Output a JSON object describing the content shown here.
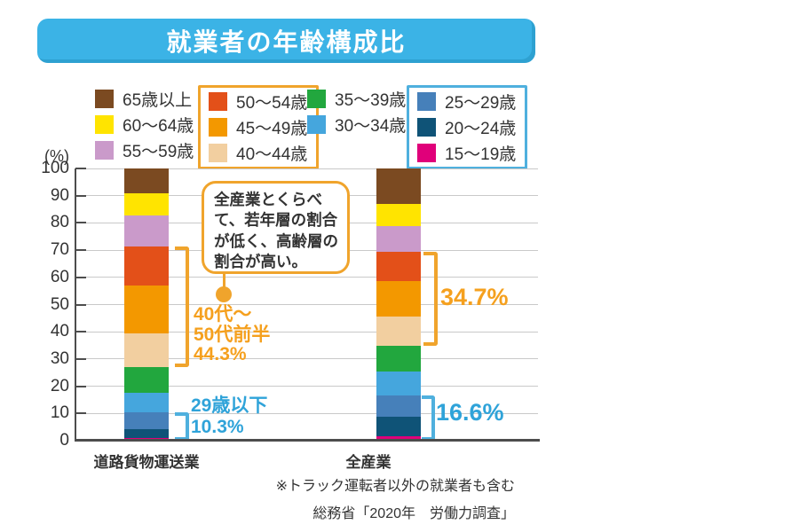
{
  "title": "就業者の年齢構成比",
  "colors": {
    "title_bg": "#3bb3e6",
    "accent_orange": "#f0a42c",
    "text_orange": "#f5a01e",
    "accent_blue": "#4fb0de",
    "text_blue": "#2fa3d9",
    "grid": "#c9c9c9",
    "axis": "#4d4d4d",
    "text": "#333333"
  },
  "legend": {
    "columns": [
      {
        "boxed": false,
        "items": [
          {
            "label": "65歳以上",
            "color": "#7b4a21"
          },
          {
            "label": "60〜64歳",
            "color": "#ffe400"
          },
          {
            "label": "55〜59歳",
            "color": "#ca9aca"
          }
        ]
      },
      {
        "boxed": true,
        "box_color": "#f0a42c",
        "items": [
          {
            "label": "50〜54歳",
            "color": "#e35019"
          },
          {
            "label": "45〜49歳",
            "color": "#f39800"
          },
          {
            "label": "40〜44歳",
            "color": "#f2cfa0"
          }
        ]
      },
      {
        "boxed": false,
        "items": [
          {
            "label": "35〜39歳",
            "color": "#22a73e"
          },
          {
            "label": "30〜34歳",
            "color": "#45a6dd"
          }
        ]
      },
      {
        "boxed": true,
        "box_color": "#4fb0de",
        "items": [
          {
            "label": "25〜29歳",
            "color": "#4680ba"
          },
          {
            "label": "20〜24歳",
            "color": "#0f5377"
          },
          {
            "label": "15〜19歳",
            "color": "#e0007a"
          }
        ]
      }
    ]
  },
  "chart_data": {
    "type": "bar",
    "stacked": true,
    "unit_label": "(%)",
    "ylim": [
      0,
      100
    ],
    "ytick_step": 10,
    "grid": true,
    "categories": [
      "道路貨物運送業",
      "全産業"
    ],
    "age_groups": [
      {
        "label": "65歳以上",
        "color": "#7b4a21"
      },
      {
        "label": "60〜64歳",
        "color": "#ffe400"
      },
      {
        "label": "55〜59歳",
        "color": "#ca9aca"
      },
      {
        "label": "50〜54歳",
        "color": "#e35019"
      },
      {
        "label": "45〜49歳",
        "color": "#f39800"
      },
      {
        "label": "40〜44歳",
        "color": "#f2cfa0"
      },
      {
        "label": "35〜39歳",
        "color": "#22a73e"
      },
      {
        "label": "30〜34歳",
        "color": "#45a6dd"
      },
      {
        "label": "25〜29歳",
        "color": "#4680ba"
      },
      {
        "label": "20〜24歳",
        "color": "#0f5377"
      },
      {
        "label": "15〜19歳",
        "color": "#e0007a"
      }
    ],
    "series": [
      {
        "name": "道路貨物運送業",
        "values": [
          9.2,
          8.1,
          11.5,
          14.3,
          17.5,
          12.5,
          9.3,
          7.3,
          6.0,
          3.2,
          1.1
        ]
      },
      {
        "name": "全産業",
        "values": [
          13.1,
          8.2,
          9.2,
          10.8,
          13.2,
          10.7,
          9.3,
          8.9,
          7.8,
          7.3,
          1.5
        ]
      }
    ],
    "brackets": [
      {
        "category": "道路貨物運送業",
        "range": "40〜54歳",
        "label": "40代〜50代前半 44.3%"
      },
      {
        "category": "道路貨物運送業",
        "range": "15〜29歳",
        "label": "29歳以下 10.3%"
      },
      {
        "category": "全産業",
        "range": "40〜54歳",
        "label": "34.7%"
      },
      {
        "category": "全産業",
        "range": "15〜29歳",
        "label": "16.6%"
      }
    ]
  },
  "annotations": {
    "callout": {
      "line1": "全産業とくらべ",
      "line2": "て、若年層の割合",
      "line3": "が低く、高齢層の",
      "line4": "割合が高い。"
    },
    "left_mid": {
      "line1": "40代〜",
      "line2": "50代前半",
      "line3": "44.3%"
    },
    "left_young": {
      "line1": "29歳以下",
      "line2": "10.3%"
    },
    "right_mid": {
      "value": "34.7%"
    },
    "right_young": {
      "value": "16.6%"
    }
  },
  "notes": {
    "line1": "※トラック運転者以外の就業者も含む",
    "line2": "総務省「2020年　労働力調査」"
  }
}
